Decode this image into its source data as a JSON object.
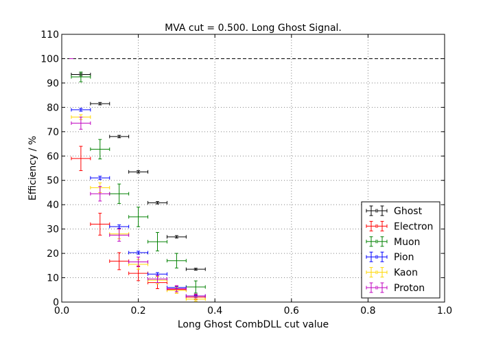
{
  "chart_data": {
    "type": "scatter",
    "title": "MVA cut = 0.500. Long Ghost Signal.",
    "xlabel": "Long Ghost CombDLL cut value",
    "ylabel": "Efficiency / %",
    "xlim": [
      0.0,
      1.0
    ],
    "ylim": [
      0,
      110
    ],
    "xticks": [
      "0.0",
      "0.2",
      "0.4",
      "0.6",
      "0.8",
      "1.0"
    ],
    "yticks": [
      "0",
      "10",
      "20",
      "30",
      "40",
      "50",
      "60",
      "70",
      "80",
      "90",
      "100",
      "110"
    ],
    "grid": true,
    "reference_line": 100,
    "legend_position": "lower-right",
    "series": [
      {
        "name": "Ghost",
        "color": "#000000",
        "x": [
          0.05,
          0.1,
          0.15,
          0.2,
          0.25,
          0.3,
          0.35
        ],
        "y": [
          93.5,
          81.5,
          68.0,
          53.5,
          40.8,
          26.8,
          13.5
        ],
        "xerr": 0.025,
        "yerr": [
          0.5,
          0.5,
          0.5,
          0.5,
          0.5,
          0.5,
          0.4
        ]
      },
      {
        "name": "Electron",
        "color": "#ff0000",
        "x": [
          0.05,
          0.1,
          0.15,
          0.2,
          0.25,
          0.3,
          0.35
        ],
        "y": [
          59.0,
          32.0,
          16.8,
          11.8,
          8.0,
          5.2,
          2.0
        ],
        "xerr": 0.025,
        "yerr": [
          5.0,
          4.5,
          3.5,
          3.0,
          2.5,
          1.5,
          1.0
        ]
      },
      {
        "name": "Muon",
        "color": "#008000",
        "x": [
          0.05,
          0.1,
          0.15,
          0.2,
          0.25,
          0.3,
          0.35
        ],
        "y": [
          92.5,
          62.8,
          44.5,
          35.0,
          24.8,
          17.0,
          6.2
        ],
        "xerr": 0.025,
        "yerr": [
          2.0,
          4.0,
          4.0,
          4.0,
          3.8,
          3.0,
          2.5
        ]
      },
      {
        "name": "Pion",
        "color": "#0000ff",
        "x": [
          0.05,
          0.1,
          0.15,
          0.2,
          0.25,
          0.3,
          0.35
        ],
        "y": [
          79.0,
          51.0,
          31.0,
          20.3,
          11.5,
          6.0,
          2.5
        ],
        "xerr": 0.025,
        "yerr": [
          0.6,
          0.7,
          0.7,
          0.6,
          0.6,
          0.4,
          0.3
        ]
      },
      {
        "name": "Kaon",
        "color": "#ffd700",
        "x": [
          0.05,
          0.1,
          0.15,
          0.2,
          0.25,
          0.3,
          0.35
        ],
        "y": [
          76.0,
          47.0,
          28.0,
          15.5,
          9.0,
          4.8,
          1.2
        ],
        "xerr": 0.025,
        "yerr": [
          1.0,
          2.0,
          2.0,
          2.0,
          1.5,
          1.2,
          0.8
        ]
      },
      {
        "name": "Proton",
        "color": "#bf00bf",
        "x": [
          0.025,
          0.05,
          0.1,
          0.15,
          0.2,
          0.25,
          0.3,
          0.35
        ],
        "y": [
          100.0,
          73.5,
          44.5,
          27.5,
          16.5,
          9.5,
          5.5,
          2.5
        ],
        "xerr": [
          0.0,
          0.025,
          0.025,
          0.025,
          0.025,
          0.025,
          0.025,
          0.025
        ],
        "yerr": [
          0.0,
          2.5,
          3.0,
          2.5,
          2.0,
          1.5,
          1.2,
          0.8
        ]
      }
    ]
  }
}
